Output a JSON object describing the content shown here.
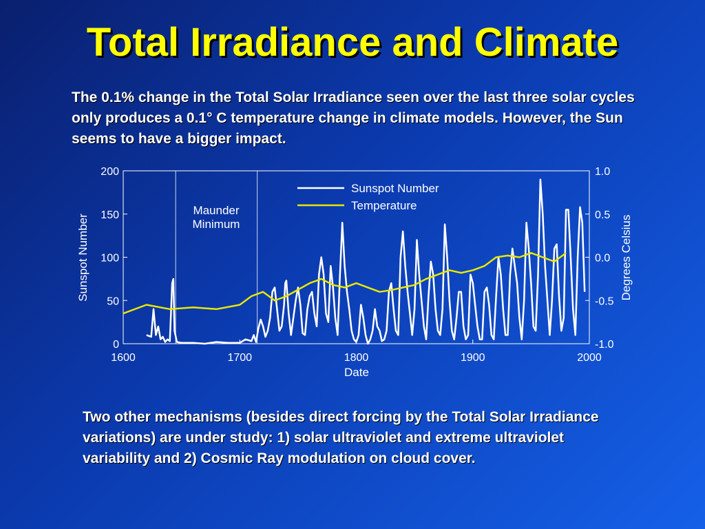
{
  "slide": {
    "title": "Total Irradiance and Climate",
    "paragraph_top": "The 0.1% change in the Total Solar Irradiance seen over the last three solar cycles only produces a 0.1° C temperature change in climate models. However, the Sun seems to have a bigger impact.",
    "paragraph_bottom": "Two other mechanisms (besides direct forcing by the Total Solar Irradiance variations) are under study: 1) solar ultraviolet and extreme ultraviolet variability and 2) Cosmic Ray modulation on cloud cover."
  },
  "colors": {
    "background": "#0b3bb0",
    "title": "#ffff00",
    "text": "#ffffff",
    "sunspot": "#ffffff",
    "temperature": "#e8e800"
  },
  "chart_data": {
    "type": "line",
    "xlabel": "Date",
    "ylabel_left": "Sunspot Number",
    "ylabel_right": "Degrees Celsius",
    "xlim": [
      1600,
      2000
    ],
    "ylim_left": [
      0,
      200
    ],
    "ylim_right": [
      -1.0,
      1.0
    ],
    "x_ticks": [
      "1600",
      "1700",
      "1800",
      "1900",
      "2000"
    ],
    "y_left_ticks": [
      "0",
      "50",
      "100",
      "150",
      "200"
    ],
    "y_right_ticks": [
      "-1.0",
      "-0.5",
      "0.0",
      "0.5",
      "1.0"
    ],
    "legend_position": "top-right",
    "annotation": {
      "line1": "Maunder",
      "line2": "Minimum",
      "x_range": [
        1645,
        1715
      ]
    },
    "series": [
      {
        "name": "Sunspot Number",
        "axis": "left",
        "x": [
          1620,
          1624,
          1626,
          1628,
          1630,
          1632,
          1634,
          1636,
          1638,
          1640,
          1642,
          1643,
          1644,
          1646,
          1650,
          1660,
          1670,
          1680,
          1690,
          1700,
          1705,
          1710,
          1712,
          1714,
          1716,
          1718,
          1720,
          1722,
          1724,
          1726,
          1728,
          1730,
          1732,
          1734,
          1736,
          1738,
          1739,
          1740,
          1742,
          1744,
          1746,
          1748,
          1750,
          1752,
          1754,
          1756,
          1758,
          1760,
          1762,
          1764,
          1766,
          1768,
          1770,
          1772,
          1774,
          1776,
          1778,
          1780,
          1782,
          1784,
          1786,
          1788,
          1790,
          1792,
          1794,
          1796,
          1798,
          1800,
          1802,
          1804,
          1806,
          1808,
          1810,
          1812,
          1814,
          1816,
          1818,
          1820,
          1822,
          1824,
          1826,
          1828,
          1830,
          1832,
          1834,
          1836,
          1838,
          1840,
          1842,
          1844,
          1846,
          1848,
          1850,
          1852,
          1854,
          1856,
          1858,
          1860,
          1862,
          1864,
          1866,
          1868,
          1870,
          1872,
          1874,
          1876,
          1878,
          1880,
          1882,
          1884,
          1886,
          1888,
          1890,
          1892,
          1894,
          1896,
          1898,
          1900,
          1902,
          1904,
          1906,
          1908,
          1910,
          1912,
          1914,
          1916,
          1918,
          1920,
          1922,
          1924,
          1926,
          1928,
          1930,
          1932,
          1934,
          1936,
          1938,
          1940,
          1942,
          1944,
          1946,
          1948,
          1950,
          1952,
          1954,
          1956,
          1958,
          1960,
          1962,
          1964,
          1966,
          1968,
          1970,
          1972,
          1974,
          1976,
          1978,
          1980,
          1982,
          1984,
          1986,
          1988,
          1990,
          1992,
          1994,
          1996
        ],
        "values": [
          10,
          8,
          40,
          10,
          20,
          5,
          8,
          2,
          5,
          3,
          70,
          75,
          15,
          2,
          1,
          1,
          0,
          2,
          1,
          1,
          5,
          3,
          10,
          2,
          18,
          28,
          20,
          8,
          15,
          30,
          60,
          65,
          40,
          15,
          20,
          45,
          70,
          73,
          35,
          10,
          30,
          50,
          65,
          45,
          12,
          10,
          40,
          55,
          60,
          35,
          20,
          80,
          100,
          80,
          35,
          25,
          90,
          65,
          30,
          10,
          80,
          140,
          90,
          60,
          40,
          15,
          5,
          2,
          10,
          45,
          30,
          10,
          0,
          5,
          15,
          40,
          20,
          15,
          3,
          5,
          15,
          60,
          70,
          40,
          15,
          10,
          100,
          130,
          90,
          60,
          35,
          10,
          40,
          120,
          80,
          50,
          20,
          5,
          55,
          95,
          80,
          40,
          15,
          10,
          40,
          138,
          100,
          50,
          15,
          5,
          30,
          60,
          60,
          20,
          5,
          10,
          80,
          70,
          45,
          20,
          5,
          5,
          60,
          65,
          45,
          10,
          5,
          55,
          100,
          80,
          40,
          10,
          10,
          80,
          110,
          90,
          70,
          30,
          5,
          50,
          140,
          110,
          70,
          20,
          15,
          80,
          190,
          150,
          90,
          50,
          10,
          50,
          110,
          115,
          55,
          15,
          30,
          155,
          155,
          100,
          40,
          10,
          100,
          158,
          140,
          60
        ]
      },
      {
        "name": "Temperature",
        "axis": "right",
        "x": [
          1600,
          1620,
          1640,
          1660,
          1680,
          1700,
          1710,
          1720,
          1730,
          1740,
          1760,
          1770,
          1780,
          1790,
          1800,
          1810,
          1820,
          1830,
          1840,
          1850,
          1860,
          1870,
          1880,
          1890,
          1900,
          1910,
          1920,
          1930,
          1940,
          1950,
          1960,
          1970,
          1980
        ],
        "values": [
          -0.65,
          -0.55,
          -0.6,
          -0.58,
          -0.6,
          -0.55,
          -0.45,
          -0.4,
          -0.5,
          -0.45,
          -0.3,
          -0.25,
          -0.32,
          -0.35,
          -0.3,
          -0.35,
          -0.4,
          -0.38,
          -0.35,
          -0.32,
          -0.25,
          -0.2,
          -0.15,
          -0.18,
          -0.15,
          -0.1,
          0.0,
          0.02,
          0.0,
          0.05,
          0.0,
          -0.05,
          0.05
        ]
      }
    ]
  }
}
